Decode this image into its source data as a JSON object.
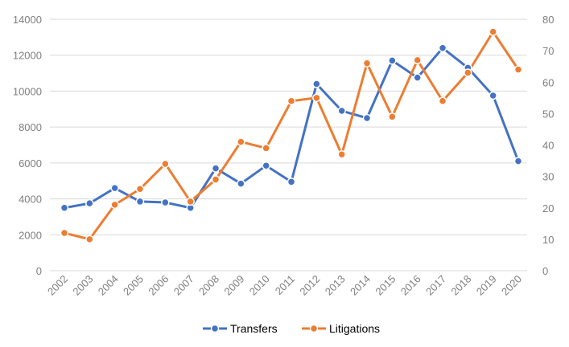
{
  "chart_data": {
    "type": "line",
    "x": [
      "2002",
      "2003",
      "2004",
      "2005",
      "2006",
      "2007",
      "2008",
      "2009",
      "2010",
      "2011",
      "2012",
      "2013",
      "2014",
      "2015",
      "2016",
      "2017",
      "2018",
      "2019",
      "2020"
    ],
    "series": [
      {
        "name": "Transfers",
        "axis": "left",
        "color": "#4472c4",
        "values": [
          3500,
          3750,
          4600,
          3850,
          3800,
          3500,
          5700,
          4850,
          5850,
          4950,
          10400,
          8900,
          8500,
          11700,
          10750,
          12400,
          11300,
          9750,
          6100
        ]
      },
      {
        "name": "Litigations",
        "axis": "right",
        "color": "#ed7d31",
        "values": [
          12,
          10,
          21,
          26,
          34,
          22,
          29,
          41,
          39,
          54,
          55,
          37,
          66,
          49,
          67,
          54,
          63,
          76,
          64
        ]
      }
    ],
    "y_left": {
      "min": 0,
      "max": 14000,
      "ticks": [
        "0",
        "2000",
        "4000",
        "6000",
        "8000",
        "10000",
        "12000",
        "14000"
      ]
    },
    "y_right": {
      "min": 0,
      "max": 80,
      "ticks": [
        "0",
        "10",
        "20",
        "30",
        "40",
        "50",
        "60",
        "70",
        "80"
      ]
    },
    "grid": true,
    "legend": {
      "position": "bottom",
      "entries": [
        "Transfers",
        "Litigations"
      ]
    },
    "title": "",
    "xlabel": "",
    "ylabel": ""
  }
}
